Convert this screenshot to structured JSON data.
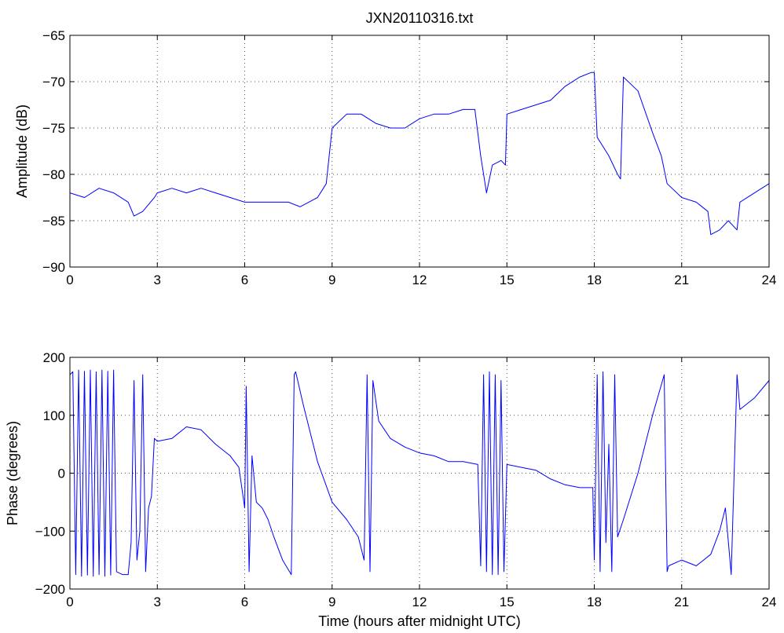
{
  "chart_data": [
    {
      "type": "line",
      "title": "JXN20110316.txt",
      "xlabel": "",
      "ylabel": "Amplitude (dB)",
      "xlim": [
        0,
        24
      ],
      "ylim": [
        -90,
        -65
      ],
      "xticks": [
        0,
        3,
        6,
        9,
        12,
        15,
        18,
        21,
        24
      ],
      "yticks": [
        -65,
        -70,
        -75,
        -80,
        -85,
        -90
      ],
      "grid": true,
      "series_color": "#0000ff",
      "series": [
        {
          "x": [
            0,
            0.5,
            1,
            1.5,
            2,
            2.2,
            2.5,
            2.9,
            3,
            3.5,
            4,
            4.5,
            5,
            5.5,
            6,
            6.5,
            7,
            7.5,
            7.9,
            8.2,
            8.5,
            8.8,
            9,
            9.5,
            10,
            10.5,
            11,
            11.5,
            12,
            12.5,
            13,
            13.5,
            13.9,
            14.1,
            14.3,
            14.5,
            14.8,
            14.95,
            15,
            15.5,
            16,
            16.5,
            17,
            17.5,
            17.9,
            18,
            18.1,
            18.5,
            18.8,
            18.9,
            19,
            19.5,
            20,
            20.3,
            20.5,
            21,
            21.5,
            21.9,
            22,
            22.3,
            22.6,
            22.9,
            23,
            23.5,
            24
          ],
          "y": [
            -82,
            -82.5,
            -81.5,
            -82,
            -83,
            -84.5,
            -84,
            -82.5,
            -82,
            -81.5,
            -82,
            -81.5,
            -82,
            -82.5,
            -83,
            -83,
            -83,
            -83,
            -83.5,
            -83,
            -82.5,
            -81,
            -75,
            -73.5,
            -73.5,
            -74.5,
            -75,
            -75,
            -74,
            -73.5,
            -73.5,
            -73,
            -73,
            -78,
            -82,
            -79,
            -78.5,
            -79,
            -73.5,
            -73,
            -72.5,
            -72,
            -70.5,
            -69.5,
            -69,
            -69,
            -76,
            -78,
            -80,
            -80.5,
            -69.5,
            -71,
            -75.5,
            -78,
            -81,
            -82.5,
            -83,
            -84,
            -86.5,
            -86,
            -85,
            -86,
            -83,
            -82,
            -81
          ]
        }
      ]
    },
    {
      "type": "line",
      "title": "",
      "xlabel": "Time (hours after midnight UTC)",
      "ylabel": "Phase (degrees)",
      "xlim": [
        0,
        24
      ],
      "ylim": [
        -200,
        200
      ],
      "xticks": [
        0,
        3,
        6,
        9,
        12,
        15,
        18,
        21,
        24
      ],
      "yticks": [
        200,
        100,
        0,
        -100,
        -200
      ],
      "grid": true,
      "series_color": "#0000ff",
      "series": [
        {
          "x": [
            0,
            0.1,
            0.2,
            0.3,
            0.4,
            0.5,
            0.6,
            0.7,
            0.8,
            0.9,
            1.0,
            1.1,
            1.2,
            1.3,
            1.4,
            1.5,
            1.6,
            1.8,
            2.0,
            2.1,
            2.2,
            2.3,
            2.4,
            2.5,
            2.6,
            2.7,
            2.8,
            2.9,
            3.0,
            3.5,
            4.0,
            4.5,
            5.0,
            5.5,
            5.8,
            6.0,
            6.05,
            6.15,
            6.25,
            6.4,
            6.6,
            6.8,
            7.0,
            7.3,
            7.6,
            7.7,
            7.75,
            8.0,
            8.5,
            9.0,
            9.5,
            9.9,
            10.1,
            10.2,
            10.3,
            10.4,
            10.6,
            11.0,
            11.5,
            12.0,
            12.5,
            13.0,
            13.5,
            14.0,
            14.1,
            14.2,
            14.3,
            14.4,
            14.5,
            14.6,
            14.7,
            14.8,
            14.9,
            15.0,
            15.5,
            16.0,
            16.5,
            17.0,
            17.5,
            17.95,
            18.0,
            18.1,
            18.2,
            18.3,
            18.4,
            18.5,
            18.6,
            18.7,
            18.8,
            19.0,
            19.5,
            20.0,
            20.4,
            20.5,
            20.55,
            21.0,
            21.5,
            22.0,
            22.3,
            22.5,
            22.7,
            22.9,
            23.0,
            23.5,
            24.0
          ],
          "y": [
            170,
            175,
            -175,
            178,
            -178,
            176,
            -176,
            178,
            -178,
            175,
            -175,
            178,
            -178,
            176,
            -176,
            178,
            -170,
            -175,
            -175,
            -120,
            160,
            -150,
            -100,
            170,
            -170,
            -60,
            -40,
            60,
            55,
            60,
            80,
            75,
            50,
            30,
            10,
            -60,
            150,
            -170,
            30,
            -50,
            -60,
            -80,
            -110,
            -150,
            -175,
            170,
            175,
            120,
            20,
            -50,
            -80,
            -110,
            -150,
            170,
            -170,
            160,
            90,
            60,
            45,
            35,
            30,
            20,
            20,
            15,
            -160,
            170,
            -170,
            175,
            -175,
            170,
            -175,
            160,
            -170,
            15,
            10,
            5,
            -10,
            -20,
            -25,
            -25,
            -150,
            170,
            -170,
            175,
            -120,
            50,
            -170,
            170,
            -110,
            -80,
            0,
            100,
            170,
            -170,
            -160,
            -150,
            -160,
            -140,
            -100,
            -60,
            -175,
            170,
            110,
            130,
            160
          ]
        }
      ]
    }
  ]
}
